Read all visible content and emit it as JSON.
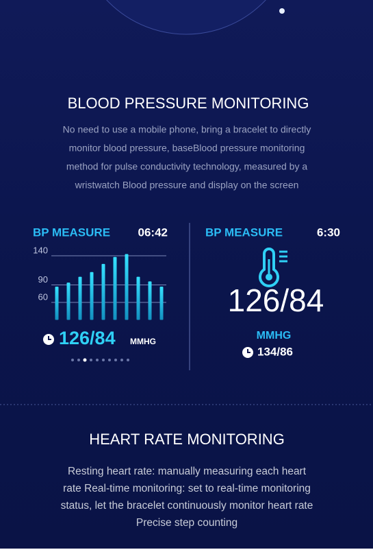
{
  "section1": {
    "title": "BLOOD PRESSURE MONITORING",
    "lines": [
      "No need to use a mobile phone, bring a bracelet to directly",
      "monitor blood pressure, baseBlood pressure monitoring",
      "method for pulse conductivity technology, measured by a",
      "wristwatch Blood pressure and display on the screen"
    ]
  },
  "left_watch": {
    "label": "BP MEASURE",
    "time": "06:42",
    "chart": {
      "type": "bar",
      "values": [
        87,
        94,
        104,
        112,
        126,
        138,
        143,
        104,
        96,
        87
      ],
      "ylim": [
        30,
        150
      ],
      "yticks": [
        60,
        90,
        140
      ],
      "color": "#22c8f0"
    },
    "reading": "126/84",
    "unit": "MMHG"
  },
  "right_watch": {
    "label": "BP MEASURE",
    "time": "6:30",
    "reading": "126/84",
    "unit": "MMHG",
    "previous": "134/86"
  },
  "section2": {
    "title": "HEART RATE MONITORING",
    "lines": [
      "Resting heart rate: manually measuring each heart",
      "rate Real-time monitoring: set to real-time monitoring",
      "status, let the bracelet continuously monitor heart rate",
      "Precise step counting"
    ]
  }
}
